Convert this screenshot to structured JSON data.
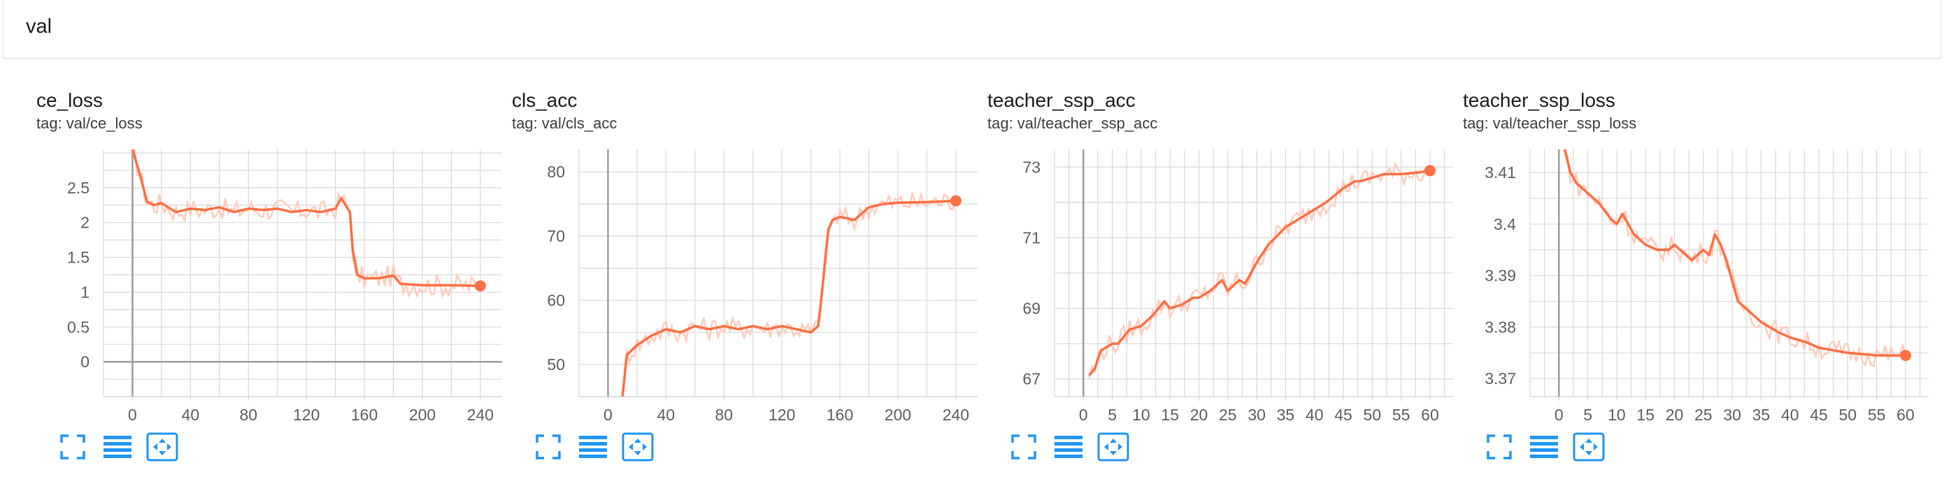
{
  "header": {
    "title": "val"
  },
  "colors": {
    "line": "#ff7043",
    "line_raw": "#ffccbc",
    "grid": "#d9d9d9",
    "axis": "#9e9e9e",
    "tick_text": "#616161",
    "icon": "#2196f3"
  },
  "cards": [
    {
      "title": "ce_loss",
      "tag": "tag: val/ce_loss"
    },
    {
      "title": "cls_acc",
      "tag": "tag: val/cls_acc"
    },
    {
      "title": "teacher_ssp_acc",
      "tag": "tag: val/teacher_ssp_acc"
    },
    {
      "title": "teacher_ssp_loss",
      "tag": "tag: val/teacher_ssp_loss"
    }
  ],
  "toolbar_icons": [
    "fullscreen-icon",
    "data-table-icon",
    "fit-domain-icon"
  ],
  "chart_data": [
    {
      "type": "line",
      "title": "ce_loss",
      "xlim": [
        -20,
        255
      ],
      "ylim": [
        -0.5,
        3.05
      ],
      "xticks": [
        0,
        40,
        80,
        120,
        160,
        200,
        240
      ],
      "yticks": [
        0,
        0.5,
        1,
        1.5,
        2,
        2.5
      ],
      "ytick_labels": [
        "0",
        "0.5",
        "1",
        "1.5",
        "2",
        "2.5"
      ],
      "grid": true,
      "series": [
        {
          "x": [
            0,
            5,
            10,
            15,
            20,
            30,
            40,
            50,
            60,
            70,
            80,
            90,
            100,
            110,
            120,
            130,
            140,
            144,
            150,
            152,
            155,
            160,
            170,
            180,
            185,
            200,
            220,
            240
          ],
          "y": [
            3.05,
            2.7,
            2.3,
            2.25,
            2.28,
            2.15,
            2.2,
            2.18,
            2.22,
            2.15,
            2.2,
            2.18,
            2.2,
            2.15,
            2.18,
            2.15,
            2.2,
            2.35,
            2.15,
            1.6,
            1.25,
            1.2,
            1.2,
            1.24,
            1.12,
            1.1,
            1.1,
            1.09
          ]
        }
      ]
    },
    {
      "type": "line",
      "title": "cls_acc",
      "xlim": [
        -20,
        255
      ],
      "ylim": [
        45,
        83.5
      ],
      "xticks": [
        0,
        40,
        80,
        120,
        160,
        200,
        240
      ],
      "yticks": [
        50,
        60,
        70,
        80
      ],
      "ytick_labels": [
        "50",
        "60",
        "70",
        "80"
      ],
      "grid": true,
      "series": [
        {
          "x": [
            10,
            13,
            20,
            30,
            40,
            50,
            60,
            70,
            80,
            90,
            100,
            110,
            120,
            130,
            140,
            145,
            148,
            152,
            155,
            160,
            170,
            180,
            190,
            200,
            220,
            240
          ],
          "y": [
            45,
            51.5,
            53,
            54.5,
            55.5,
            55,
            56,
            55.5,
            56,
            55.5,
            56,
            55.5,
            56,
            55.5,
            55,
            56,
            62,
            71,
            72.5,
            73,
            72.5,
            74.5,
            75,
            75.2,
            75.3,
            75.5
          ]
        }
      ]
    },
    {
      "type": "line",
      "title": "teacher_ssp_acc",
      "xlim": [
        -5,
        64
      ],
      "ylim": [
        66.5,
        73.5
      ],
      "xticks": [
        0,
        5,
        10,
        15,
        20,
        25,
        30,
        35,
        40,
        45,
        50,
        55,
        60
      ],
      "yticks": [
        67,
        69,
        71,
        73
      ],
      "ytick_labels": [
        "67",
        "69",
        "71",
        "73"
      ],
      "grid": true,
      "series": [
        {
          "x": [
            1,
            2,
            3,
            5,
            6,
            8,
            10,
            12,
            14,
            15,
            17,
            19,
            20,
            22,
            24,
            25,
            27,
            28,
            30,
            32,
            35,
            38,
            40,
            42,
            45,
            47,
            48,
            50,
            52,
            55,
            58,
            60
          ],
          "y": [
            67.1,
            67.3,
            67.8,
            68,
            68,
            68.4,
            68.5,
            68.8,
            69.2,
            69,
            69.1,
            69.3,
            69.3,
            69.5,
            69.8,
            69.5,
            69.8,
            69.7,
            70.3,
            70.8,
            71.3,
            71.6,
            71.8,
            72,
            72.4,
            72.6,
            72.6,
            72.7,
            72.8,
            72.8,
            72.85,
            72.9
          ]
        }
      ]
    },
    {
      "type": "line",
      "title": "teacher_ssp_loss",
      "xlim": [
        -5,
        64
      ],
      "ylim": [
        3.3665,
        3.4145
      ],
      "xticks": [
        0,
        5,
        10,
        15,
        20,
        25,
        30,
        35,
        40,
        45,
        50,
        55,
        60
      ],
      "yticks": [
        3.37,
        3.38,
        3.39,
        3.4,
        3.41
      ],
      "ytick_labels": [
        "3.37",
        "3.38",
        "3.39",
        "3.4",
        "3.41"
      ],
      "grid": true,
      "series": [
        {
          "x": [
            1,
            2,
            3,
            5,
            7,
            9,
            10,
            11,
            13,
            15,
            17,
            19,
            20,
            22,
            23,
            25,
            26,
            27,
            28,
            29,
            30,
            31,
            33,
            35,
            38,
            40,
            43,
            45,
            50,
            55,
            60
          ],
          "y": [
            3.4145,
            3.41,
            3.408,
            3.406,
            3.404,
            3.401,
            3.4,
            3.402,
            3.398,
            3.396,
            3.395,
            3.395,
            3.396,
            3.394,
            3.393,
            3.395,
            3.394,
            3.398,
            3.396,
            3.393,
            3.389,
            3.385,
            3.383,
            3.381,
            3.379,
            3.378,
            3.377,
            3.376,
            3.375,
            3.3745,
            3.3745
          ]
        }
      ]
    }
  ]
}
